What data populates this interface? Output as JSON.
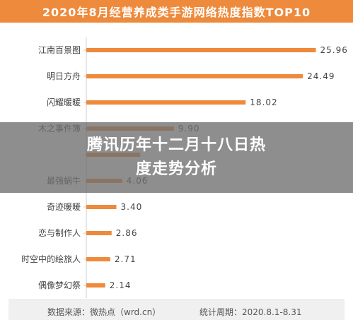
{
  "chart_data": {
    "type": "bar",
    "orientation": "horizontal",
    "title": "2020年8月经营养成类手游网络热度指数TOP10",
    "categories": [
      "江南百景图",
      "明日方舟",
      "闪耀暖暖",
      "木之事件簿",
      "",
      "最强蜗牛",
      "奇迹暖暖",
      "恋与制作人",
      "时空中的绘旅人",
      "偶像梦幻祭"
    ],
    "values": [
      25.96,
      24.49,
      18.02,
      9.9,
      6.1,
      4.06,
      3.4,
      2.86,
      2.71,
      2.14
    ],
    "value_labels": [
      "25.96",
      "24.49",
      "18.02",
      "9.90",
      "",
      "4.06",
      "3.40",
      "2.86",
      "2.71",
      "2.14"
    ],
    "xlim": [
      0,
      28
    ],
    "bar_color": "#ee8a3c",
    "grid": false
  },
  "footer": {
    "source": "数据来源：微热点（wrd.cn）",
    "period": "统计周期：2020.8.1-8.31"
  },
  "overlay": {
    "text": "腾讯历年十二月十八日热度走势分析"
  }
}
